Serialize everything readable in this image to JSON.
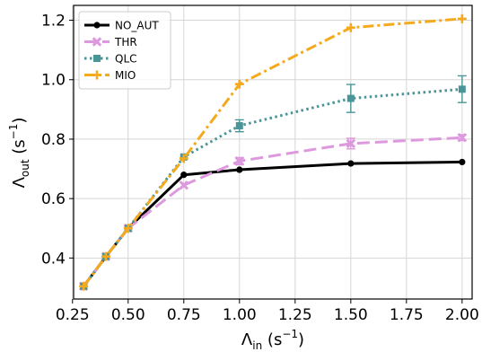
{
  "chart_data": {
    "type": "line",
    "xlabel": {
      "symbol": "Λ",
      "sub": "in",
      "unit": " (s",
      "exp": "−1",
      "close": ")"
    },
    "ylabel": {
      "symbol": "Λ",
      "sub": "out",
      "unit": " (s",
      "exp": "−1",
      "close": ")"
    },
    "xlim": [
      0.255,
      2.045
    ],
    "ylim": [
      0.262,
      1.25
    ],
    "xticks": [
      "0.25",
      "0.50",
      "0.75",
      "1.00",
      "1.25",
      "1.50",
      "1.75",
      "2.00"
    ],
    "yticks": [
      "0.4",
      "0.6",
      "0.8",
      "1.0",
      "1.2"
    ],
    "grid": true,
    "legend_position": "top-left",
    "series": [
      {
        "name": "NO_AUT",
        "color": "#000000",
        "dash": "",
        "marker": "circle",
        "x": [
          0.3,
          0.4,
          0.5,
          0.75,
          1.0,
          1.5,
          2.0
        ],
        "y": [
          0.305,
          0.405,
          0.5,
          0.68,
          0.697,
          0.718,
          0.723
        ],
        "err": [
          0,
          0,
          0,
          0,
          0,
          0,
          0
        ]
      },
      {
        "name": "THR",
        "color": "#dd99dd",
        "dash": "14,6",
        "marker": "x",
        "x": [
          0.3,
          0.4,
          0.5,
          0.75,
          1.0,
          1.5,
          2.0
        ],
        "y": [
          0.305,
          0.405,
          0.5,
          0.645,
          0.726,
          0.785,
          0.805
        ],
        "err": [
          0,
          0,
          0,
          0,
          0.012,
          0.018,
          0.01
        ]
      },
      {
        "name": "QLC",
        "color": "#4a9597",
        "dash": "2.5,3.5",
        "marker": "square",
        "x": [
          0.3,
          0.4,
          0.5,
          0.75,
          1.0,
          1.5,
          2.0
        ],
        "y": [
          0.305,
          0.405,
          0.5,
          0.74,
          0.845,
          0.937,
          0.968
        ],
        "err": [
          0,
          0,
          0,
          0,
          0.02,
          0.047,
          0.045
        ]
      },
      {
        "name": "MIO",
        "color": "#f5aa1d",
        "dash": "12,4,3,4",
        "marker": "plus",
        "x": [
          0.3,
          0.4,
          0.5,
          0.75,
          1.0,
          1.5,
          2.0
        ],
        "y": [
          0.305,
          0.405,
          0.5,
          0.735,
          0.985,
          1.175,
          1.205
        ],
        "err": [
          0,
          0,
          0,
          0,
          0,
          0,
          0
        ]
      }
    ]
  }
}
